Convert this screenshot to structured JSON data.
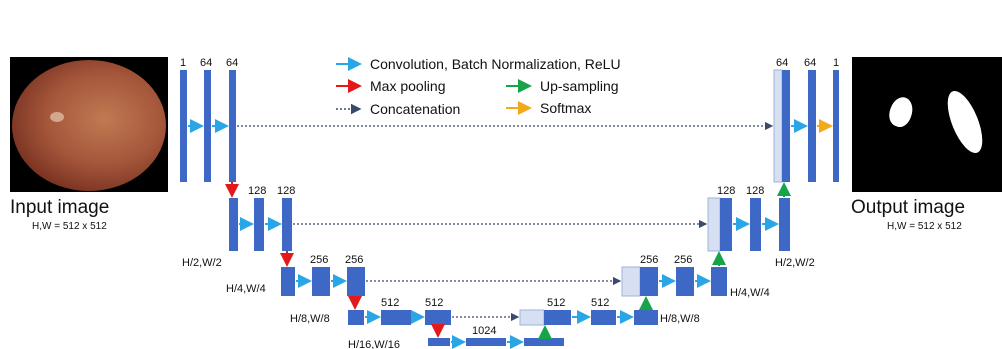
{
  "header_text": "",
  "legend": {
    "conv": "Convolution, Batch Normalization, ReLU",
    "maxpool": "Max pooling",
    "upsample": "Up-sampling",
    "concat": "Concatenation",
    "softmax": "Softmax"
  },
  "colors": {
    "block": "#3e68c6",
    "concat_block": "#d6e0f2",
    "conv_arrow": "#2aa6e6",
    "maxpool_arrow": "#e41a1a",
    "upsample_arrow": "#16a34a",
    "concat_arrow": "#3a4a6a",
    "softmax_arrow": "#f2a91a"
  },
  "input": {
    "label": "Input image",
    "size": "H,W  = 512 x 512"
  },
  "output": {
    "label": "Output image",
    "size": "H,W  = 512 x 512"
  },
  "channels": {
    "enc1": [
      "1",
      "64",
      "64"
    ],
    "enc2": [
      "128",
      "128"
    ],
    "enc3": [
      "256",
      "256"
    ],
    "enc4": [
      "512",
      "512"
    ],
    "bottleneck": "1024",
    "dec4": [
      "512",
      "512"
    ],
    "dec3": [
      "256",
      "256"
    ],
    "dec2": [
      "128",
      "128"
    ],
    "dec1": [
      "64",
      "64",
      "1"
    ]
  },
  "scales": {
    "s2_left": "H/2,W/2",
    "s2_right": "H/2,W/2",
    "s4_left": "H/4,W/4",
    "s4_right": "H/4,W/4",
    "s8_left": "H/8,W/8",
    "s8_right": "H/8,W/8",
    "s16": "H/16,W/16"
  }
}
